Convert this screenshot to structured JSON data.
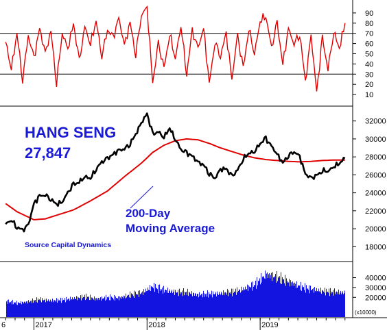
{
  "title": "HANG SENG",
  "value_label": "27,847",
  "ma_label_line1": "200-Day",
  "ma_label_line2": "Moving Average",
  "source": "Source Capital Dynamics",
  "colors": {
    "rsi": "#e00000",
    "price": "#000000",
    "moving_average": "#e00000",
    "volume": "#1414e0",
    "text": "#1a1ad6"
  },
  "chart_data": [
    {
      "type": "line",
      "panel": "oscillator",
      "ylim": [
        0,
        100
      ],
      "yticks": [
        10,
        20,
        30,
        40,
        50,
        60,
        70,
        80,
        90
      ],
      "reference_lines": [
        30,
        70
      ],
      "series": [
        {
          "x": [
            2016.75,
            2016.8,
            2016.85,
            2016.9,
            2016.95,
            2017.0,
            2017.05,
            2017.1,
            2017.15,
            2017.2,
            2017.25,
            2017.3,
            2017.35,
            2017.4,
            2017.45,
            2017.5,
            2017.55,
            2017.6,
            2017.65,
            2017.7,
            2017.75,
            2017.8,
            2017.85,
            2017.9,
            2017.95,
            2018.0,
            2018.05,
            2018.1,
            2018.15,
            2018.2,
            2018.25,
            2018.3,
            2018.35,
            2018.4,
            2018.45,
            2018.5,
            2018.55,
            2018.6,
            2018.65,
            2018.7,
            2018.75,
            2018.8,
            2018.85,
            2018.9,
            2018.95,
            2019.0,
            2019.05,
            2019.1,
            2019.15,
            2019.2,
            2019.25,
            2019.3,
            2019.35,
            2019.4,
            2019.45,
            2019.5,
            2019.55,
            2019.6,
            2019.65,
            2019.7,
            2019.75
          ],
          "values": [
            62,
            35,
            70,
            25,
            68,
            45,
            75,
            50,
            72,
            22,
            70,
            55,
            80,
            42,
            76,
            60,
            82,
            48,
            74,
            65,
            85,
            58,
            80,
            50,
            88,
            95,
            22,
            60,
            35,
            70,
            45,
            78,
            30,
            72,
            55,
            75,
            20,
            62,
            48,
            70,
            25,
            68,
            35,
            75,
            50,
            82,
            88,
            55,
            80,
            40,
            74,
            60,
            70,
            22,
            68,
            12,
            65,
            35,
            72,
            55,
            80
          ]
        }
      ]
    },
    {
      "type": "line",
      "panel": "price",
      "ylim": [
        16500,
        33500
      ],
      "yticks": [
        18000,
        20000,
        22000,
        24000,
        26000,
        28000,
        30000,
        32000
      ],
      "series": [
        {
          "name": "HANG SENG",
          "x": [
            2016.75,
            2016.8,
            2016.85,
            2016.9,
            2016.95,
            2017.0,
            2017.05,
            2017.1,
            2017.15,
            2017.2,
            2017.25,
            2017.3,
            2017.35,
            2017.4,
            2017.45,
            2017.5,
            2017.55,
            2017.6,
            2017.65,
            2017.7,
            2017.75,
            2017.8,
            2017.85,
            2017.9,
            2017.95,
            2018.0,
            2018.05,
            2018.1,
            2018.15,
            2018.2,
            2018.25,
            2018.3,
            2018.35,
            2018.4,
            2018.45,
            2018.5,
            2018.55,
            2018.6,
            2018.65,
            2018.7,
            2018.75,
            2018.8,
            2018.85,
            2018.9,
            2018.95,
            2019.0,
            2019.05,
            2019.1,
            2019.15,
            2019.2,
            2019.25,
            2019.3,
            2019.35,
            2019.4,
            2019.45,
            2019.5,
            2019.55,
            2019.6,
            2019.65,
            2019.7,
            2019.75
          ],
          "values": [
            20500,
            21000,
            20200,
            19800,
            20400,
            22800,
            23600,
            23800,
            23300,
            22700,
            23000,
            24000,
            24900,
            25200,
            25800,
            25600,
            26700,
            27400,
            27800,
            28300,
            28700,
            28900,
            29500,
            30500,
            31800,
            32800,
            30500,
            30800,
            30200,
            31200,
            30000,
            28800,
            28400,
            28100,
            27400,
            27100,
            26200,
            25600,
            26600,
            26700,
            25800,
            26500,
            27800,
            28400,
            28600,
            29500,
            30000,
            29200,
            28300,
            27300,
            28200,
            28600,
            28000,
            26100,
            25600,
            25900,
            26500,
            26400,
            26900,
            27300,
            27847
          ]
        },
        {
          "name": "200-Day Moving Average",
          "x": [
            2016.75,
            2016.85,
            2017.0,
            2017.1,
            2017.2,
            2017.35,
            2017.5,
            2017.65,
            2017.8,
            2017.95,
            2018.05,
            2018.15,
            2018.25,
            2018.35,
            2018.45,
            2018.55,
            2018.65,
            2018.75,
            2018.85,
            2018.95,
            2019.05,
            2019.15,
            2019.25,
            2019.35,
            2019.45,
            2019.55,
            2019.65,
            2019.75
          ],
          "values": [
            22800,
            21900,
            21000,
            21100,
            21500,
            22100,
            23100,
            24200,
            25800,
            27300,
            28500,
            29300,
            29800,
            30000,
            29900,
            29500,
            29000,
            28600,
            28200,
            27900,
            27700,
            27600,
            27500,
            27450,
            27500,
            27600,
            27650,
            27650
          ]
        }
      ]
    },
    {
      "type": "bar",
      "panel": "volume",
      "ylabel": "(x10000)",
      "ylim": [
        0,
        55000
      ],
      "yticks": [
        20000,
        30000,
        40000
      ],
      "x_tick_labels": [
        "6",
        "2017",
        "2018",
        "2019"
      ],
      "series": [
        {
          "name": "Volume",
          "x": [
            2016.75,
            2016.85,
            2016.95,
            2017.05,
            2017.15,
            2017.25,
            2017.35,
            2017.45,
            2017.55,
            2017.65,
            2017.75,
            2017.85,
            2017.95,
            2018.05,
            2018.15,
            2018.25,
            2018.35,
            2018.45,
            2018.55,
            2018.65,
            2018.75,
            2018.85,
            2018.95,
            2019.05,
            2019.15,
            2019.25,
            2019.35,
            2019.45,
            2019.55,
            2019.65,
            2019.75
          ],
          "values": [
            17000,
            15000,
            16500,
            19000,
            17500,
            18500,
            20000,
            22000,
            19500,
            21000,
            20500,
            24000,
            26000,
            33000,
            29000,
            27000,
            26500,
            24000,
            25000,
            25500,
            27000,
            30000,
            35000,
            46000,
            43000,
            38000,
            33000,
            30000,
            28000,
            27000,
            26000
          ]
        }
      ]
    }
  ]
}
